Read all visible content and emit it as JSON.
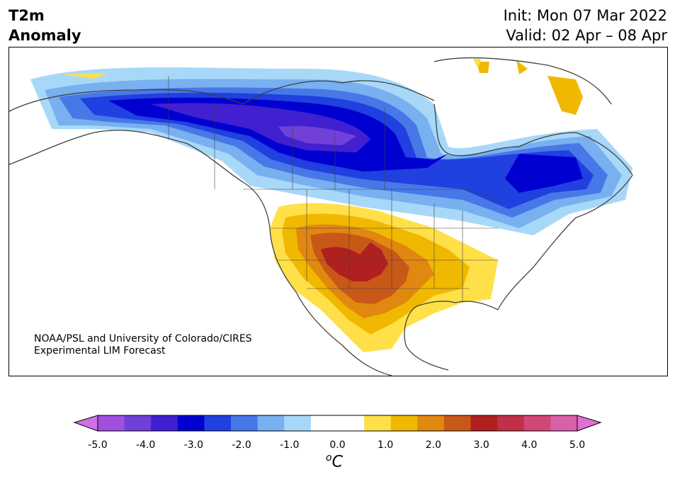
{
  "title": {
    "variable_line1": "T2m",
    "variable_line2": "Anomaly",
    "init": "Init: Mon 07 Mar 2022",
    "valid": "Valid: 02 Apr – 08 Apr"
  },
  "credit": {
    "line1": "NOAA/PSL and University of Colorado/CIRES",
    "line2": "Experimental LIM Forecast"
  },
  "colorbar": {
    "unit_base": "C",
    "unit_sup": "o",
    "ticks": [
      "-5.0",
      "-4.0",
      "-3.0",
      "-2.0",
      "-1.0",
      "0.0",
      "1.0",
      "2.0",
      "3.0",
      "4.0",
      "5.0"
    ],
    "colors": [
      "#d070e8",
      "#a050e0",
      "#7040d8",
      "#4020d0",
      "#0000d0",
      "#2040e0",
      "#4878e8",
      "#78b0f0",
      "#a8d8f8",
      "#ffffff",
      "#ffffff",
      "#ffe048",
      "#f0b800",
      "#e08810",
      "#c85818",
      "#b02020",
      "#c03048",
      "#d04878",
      "#d860a8",
      "#e070d8"
    ]
  }
}
